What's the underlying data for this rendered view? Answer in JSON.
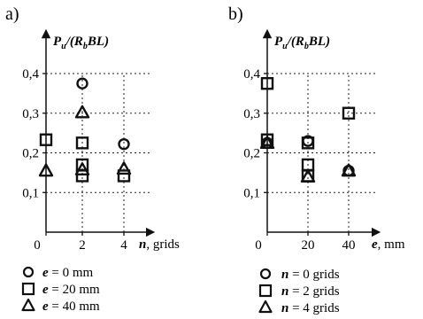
{
  "chart_data": [
    {
      "panel_label": "a)",
      "type": "scatter",
      "ylabel": {
        "lead": "P",
        "sub1": "u",
        "mid": "/(R",
        "sub2": "b",
        "tail": "BL)"
      },
      "xlabel": {
        "var": "n",
        "unit": ", grids"
      },
      "x_ticks": [
        "0",
        "2",
        "4"
      ],
      "y_ticks": [
        "0,1",
        "0,2",
        "0,3",
        "0,4"
      ],
      "xlim": [
        0,
        5
      ],
      "ylim": [
        0,
        0.44
      ],
      "grid": true,
      "series": [
        {
          "name": "e = 0 mm",
          "var": "e",
          "rest": " = 0 mm",
          "marker": "circle",
          "points": [
            [
              2,
              0.375
            ],
            [
              4,
              0.222
            ]
          ]
        },
        {
          "name": "e = 20 mm",
          "var": "e",
          "rest": " = 20 mm",
          "marker": "square",
          "points": [
            [
              0,
              0.233
            ],
            [
              2,
              0.225
            ],
            [
              2,
              0.17
            ],
            [
              2,
              0.142
            ],
            [
              4,
              0.142
            ]
          ]
        },
        {
          "name": "e = 40 mm",
          "var": "e",
          "rest": " = 40 mm",
          "marker": "triangle",
          "points": [
            [
              0,
              0.155
            ],
            [
              2,
              0.302
            ],
            [
              2,
              0.158
            ],
            [
              4,
              0.16
            ]
          ]
        }
      ]
    },
    {
      "panel_label": "b)",
      "type": "scatter",
      "ylabel": {
        "lead": "P",
        "sub1": "u",
        "mid": "/(R",
        "sub2": "b",
        "tail": "BL)"
      },
      "xlabel": {
        "var": "e",
        "unit": ", mm"
      },
      "x_ticks": [
        "0",
        "20",
        "40"
      ],
      "y_ticks": [
        "0,1",
        "0,2",
        "0,3",
        "0,4"
      ],
      "xlim": [
        0,
        50
      ],
      "ylim": [
        0,
        0.44
      ],
      "grid": true,
      "series": [
        {
          "name": "n = 0 grids",
          "var": "n",
          "rest": " = 0 grids",
          "marker": "circle",
          "points": [
            [
              0,
              0.225
            ],
            [
              20,
              0.23
            ],
            [
              40,
              0.155
            ]
          ]
        },
        {
          "name": "n = 2 grids",
          "var": "n",
          "rest": " = 2 grids",
          "marker": "square",
          "points": [
            [
              0,
              0.375
            ],
            [
              0,
              0.233
            ],
            [
              20,
              0.225
            ],
            [
              20,
              0.17
            ],
            [
              20,
              0.142
            ],
            [
              40,
              0.3
            ]
          ]
        },
        {
          "name": "n = 4 grids",
          "var": "n",
          "rest": " = 4 grids",
          "marker": "triangle",
          "points": [
            [
              0,
              0.225
            ],
            [
              20,
              0.14
            ],
            [
              40,
              0.155
            ]
          ]
        }
      ]
    }
  ]
}
